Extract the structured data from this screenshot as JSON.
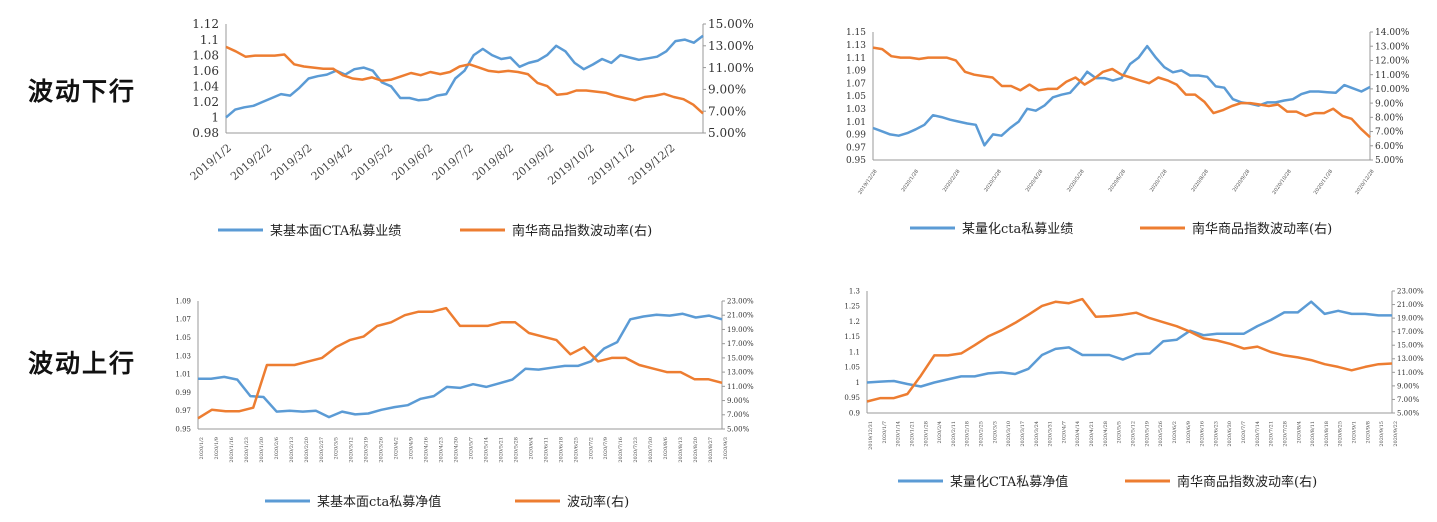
{
  "labels": {
    "down": "波动下行",
    "up": "波动上行"
  },
  "colors": {
    "blue": "#5B9BD5",
    "orange": "#ED7D31",
    "axis": "#888888"
  },
  "chart_data": [
    {
      "type": "line",
      "title": "",
      "ylim": [
        0.98,
        1.12
      ],
      "yticks": [
        "0.98",
        "1",
        "1.02",
        "1.04",
        "1.06",
        "1.08",
        "1.1",
        "1.12"
      ],
      "y2lim": [
        5,
        15
      ],
      "y2ticks": [
        "5.00%",
        "7.00%",
        "9.00%",
        "11.00%",
        "13.00%",
        "15.00%"
      ],
      "xticks": [
        "2019/1/2",
        "2019/2/2",
        "2019/3/2",
        "2019/4/2",
        "2019/5/2",
        "2019/6/2",
        "2019/7/2",
        "2019/8/2",
        "2019/9/2",
        "2019/10/2",
        "2019/11/2",
        "2019/12/2"
      ],
      "series": [
        {
          "name": "某基本面CTA私募业绩",
          "axis": "left",
          "values": [
            1.0,
            1.01,
            1.013,
            1.015,
            1.02,
            1.025,
            1.03,
            1.028,
            1.038,
            1.05,
            1.053,
            1.055,
            1.06,
            1.055,
            1.062,
            1.064,
            1.06,
            1.045,
            1.04,
            1.025,
            1.025,
            1.022,
            1.023,
            1.028,
            1.03,
            1.05,
            1.06,
            1.08,
            1.088,
            1.08,
            1.075,
            1.077,
            1.065,
            1.07,
            1.073,
            1.08,
            1.092,
            1.085,
            1.07,
            1.062,
            1.068,
            1.075,
            1.07,
            1.08,
            1.077,
            1.074,
            1.076,
            1.078,
            1.085,
            1.098,
            1.1,
            1.096,
            1.105
          ]
        },
        {
          "name": "南华商品指数波动率(右)",
          "axis": "right",
          "values": [
            12.9,
            12.5,
            12.0,
            12.1,
            12.1,
            12.1,
            12.2,
            11.3,
            11.1,
            11.0,
            10.9,
            10.9,
            10.3,
            10.0,
            9.9,
            10.1,
            9.8,
            9.9,
            10.2,
            10.5,
            10.3,
            10.6,
            10.4,
            10.6,
            11.1,
            11.3,
            11.0,
            10.7,
            10.6,
            10.7,
            10.6,
            10.4,
            9.6,
            9.3,
            8.5,
            8.6,
            8.9,
            8.9,
            8.8,
            8.7,
            8.4,
            8.2,
            8.0,
            8.3,
            8.4,
            8.6,
            8.3,
            8.1,
            7.6,
            6.8
          ]
        }
      ]
    },
    {
      "type": "line",
      "title": "",
      "ylim": [
        0.95,
        1.15
      ],
      "yticks": [
        "0.95",
        "0.97",
        "0.99",
        "1.01",
        "1.03",
        "1.05",
        "1.07",
        "1.09",
        "1.11",
        "1.13",
        "1.15"
      ],
      "y2lim": [
        5,
        14
      ],
      "y2ticks": [
        "5.00%",
        "6.00%",
        "7.00%",
        "8.00%",
        "9.00%",
        "10.00%",
        "11.00%",
        "12.00%",
        "13.00%",
        "14.00%"
      ],
      "xticks": [
        "2019/12/28",
        "2020/1/28",
        "2020/2/28",
        "2020/3/28",
        "2020/4/28",
        "2020/5/28",
        "2020/6/28",
        "2020/7/28",
        "2020/8/28",
        "2020/9/28",
        "2020/10/28",
        "2020/11/28",
        "2020/12/28"
      ],
      "series": [
        {
          "name": "某量化cta私募业绩",
          "axis": "left",
          "values": [
            1.0,
            0.995,
            0.99,
            0.988,
            0.992,
            0.998,
            1.005,
            1.02,
            1.017,
            1.013,
            1.01,
            1.007,
            1.005,
            0.973,
            0.99,
            0.988,
            1.0,
            1.01,
            1.03,
            1.027,
            1.035,
            1.048,
            1.052,
            1.055,
            1.07,
            1.088,
            1.078,
            1.078,
            1.074,
            1.078,
            1.1,
            1.11,
            1.128,
            1.11,
            1.095,
            1.087,
            1.09,
            1.082,
            1.082,
            1.08,
            1.065,
            1.063,
            1.045,
            1.04,
            1.038,
            1.035,
            1.04,
            1.04,
            1.043,
            1.045,
            1.053,
            1.057,
            1.057,
            1.056,
            1.055,
            1.067,
            1.062,
            1.057,
            1.064
          ]
        },
        {
          "name": "南华商品指数波动率(右)",
          "axis": "right",
          "values": [
            12.9,
            12.8,
            12.3,
            12.2,
            12.2,
            12.1,
            12.2,
            12.2,
            12.2,
            12.0,
            11.2,
            11.0,
            10.9,
            10.8,
            10.2,
            10.2,
            9.9,
            10.3,
            9.9,
            10.0,
            10.0,
            10.5,
            10.8,
            10.3,
            10.7,
            11.2,
            11.4,
            11.0,
            10.8,
            10.6,
            10.4,
            10.8,
            10.6,
            10.3,
            9.6,
            9.6,
            9.1,
            8.3,
            8.5,
            8.8,
            9.0,
            9.0,
            8.9,
            8.8,
            8.9,
            8.4,
            8.4,
            8.1,
            8.3,
            8.3,
            8.6,
            8.1,
            7.9,
            7.2,
            6.6
          ]
        }
      ]
    },
    {
      "type": "line",
      "title": "",
      "ylim": [
        0.95,
        1.09
      ],
      "yticks": [
        "0.95",
        "0.97",
        "0.99",
        "1.01",
        "1.03",
        "1.05",
        "1.07",
        "1.09"
      ],
      "y2lim": [
        5,
        23
      ],
      "y2ticks": [
        "5.00%",
        "7.00%",
        "9.00%",
        "11.00%",
        "13.00%",
        "15.00%",
        "17.00%",
        "19.00%",
        "21.00%",
        "23.00%"
      ],
      "xticks": [
        "2020/1/2",
        "2020/1/9",
        "2020/1/16",
        "2020/1/23",
        "2020/1/30",
        "2020/2/6",
        "2020/2/13",
        "2020/2/20",
        "2020/2/27",
        "2020/3/5",
        "2020/3/12",
        "2020/3/19",
        "2020/3/26",
        "2020/4/2",
        "2020/4/9",
        "2020/4/16",
        "2020/4/23",
        "2020/4/30",
        "2020/5/7",
        "2020/5/14",
        "2020/5/21",
        "2020/5/28",
        "2020/6/4",
        "2020/6/11",
        "2020/6/18",
        "2020/6/25",
        "2020/7/2",
        "2020/7/9",
        "2020/7/16",
        "2020/7/23",
        "2020/7/30",
        "2020/8/6",
        "2020/8/13",
        "2020/8/20",
        "2020/8/27",
        "2020/9/3"
      ],
      "series": [
        {
          "name": "某基本面cta私募净值",
          "axis": "left",
          "values": [
            1.005,
            1.005,
            1.007,
            1.004,
            0.986,
            0.985,
            0.969,
            0.97,
            0.969,
            0.97,
            0.963,
            0.969,
            0.966,
            0.967,
            0.971,
            0.974,
            0.976,
            0.983,
            0.986,
            0.996,
            0.995,
            0.999,
            0.996,
            1.0,
            1.004,
            1.016,
            1.015,
            1.017,
            1.019,
            1.019,
            1.024,
            1.038,
            1.045,
            1.07,
            1.073,
            1.075,
            1.074,
            1.076,
            1.072,
            1.074,
            1.07
          ]
        },
        {
          "name": "波动率(右)",
          "axis": "right",
          "values": [
            6.5,
            7.7,
            7.5,
            7.5,
            8.0,
            14.0,
            14.0,
            14.0,
            14.5,
            15.0,
            16.5,
            17.5,
            18.0,
            19.5,
            20.0,
            21.0,
            21.5,
            21.5,
            22.0,
            19.5,
            19.5,
            19.5,
            20.0,
            20.0,
            18.5,
            18.0,
            17.5,
            15.5,
            16.5,
            14.5,
            15.0,
            15.0,
            14.0,
            13.5,
            13.0,
            13.0,
            12.0,
            12.0,
            11.5
          ]
        }
      ]
    },
    {
      "type": "line",
      "title": "",
      "ylim": [
        0.9,
        1.3
      ],
      "yticks": [
        "0.9",
        "0.95",
        "1",
        "1.05",
        "1.1",
        "1.15",
        "1.2",
        "1.25",
        "1.3"
      ],
      "y2lim": [
        5,
        23
      ],
      "y2ticks": [
        "5.00%",
        "7.00%",
        "9.00%",
        "11.00%",
        "13.00%",
        "15.00%",
        "17.00%",
        "19.00%",
        "21.00%",
        "23.00%"
      ],
      "xticks": [
        "2019/12/31",
        "2020/1/7",
        "2020/1/14",
        "2020/1/21",
        "2020/1/28",
        "2020/2/4",
        "2020/2/11",
        "2020/2/18",
        "2020/2/25",
        "2020/3/3",
        "2020/3/10",
        "2020/3/17",
        "2020/3/24",
        "2020/3/31",
        "2020/4/7",
        "2020/4/14",
        "2020/4/21",
        "2020/4/28",
        "2020/5/5",
        "2020/5/12",
        "2020/5/19",
        "2020/5/26",
        "2020/6/2",
        "2020/6/9",
        "2020/6/16",
        "2020/6/23",
        "2020/6/30",
        "2020/7/7",
        "2020/7/14",
        "2020/7/21",
        "2020/7/28",
        "2020/8/4",
        "2020/8/11",
        "2020/8/18",
        "2020/8/25",
        "2020/9/1",
        "2020/9/8",
        "2020/9/15",
        "2020/9/22"
      ],
      "series": [
        {
          "name": "某量化CTA私募净值",
          "axis": "left",
          "values": [
            1.0,
            1.003,
            1.005,
            0.995,
            0.987,
            1.0,
            1.01,
            1.02,
            1.02,
            1.03,
            1.033,
            1.028,
            1.045,
            1.09,
            1.11,
            1.115,
            1.09,
            1.09,
            1.09,
            1.075,
            1.093,
            1.095,
            1.135,
            1.14,
            1.17,
            1.155,
            1.16,
            1.16,
            1.16,
            1.185,
            1.205,
            1.23,
            1.23,
            1.265,
            1.225,
            1.235,
            1.225,
            1.225,
            1.22,
            1.22
          ]
        },
        {
          "name": "南华商品指数波动率(右)",
          "axis": "right",
          "values": [
            6.7,
            7.2,
            7.2,
            7.8,
            10.5,
            13.5,
            13.5,
            13.8,
            15.0,
            16.3,
            17.2,
            18.3,
            19.5,
            20.8,
            21.4,
            21.2,
            21.8,
            19.2,
            19.3,
            19.5,
            19.8,
            19.0,
            18.4,
            17.8,
            17.0,
            16.0,
            15.7,
            15.2,
            14.5,
            14.8,
            14.0,
            13.5,
            13.2,
            12.8,
            12.2,
            11.8,
            11.3,
            11.8,
            12.2,
            12.3
          ]
        }
      ]
    }
  ]
}
